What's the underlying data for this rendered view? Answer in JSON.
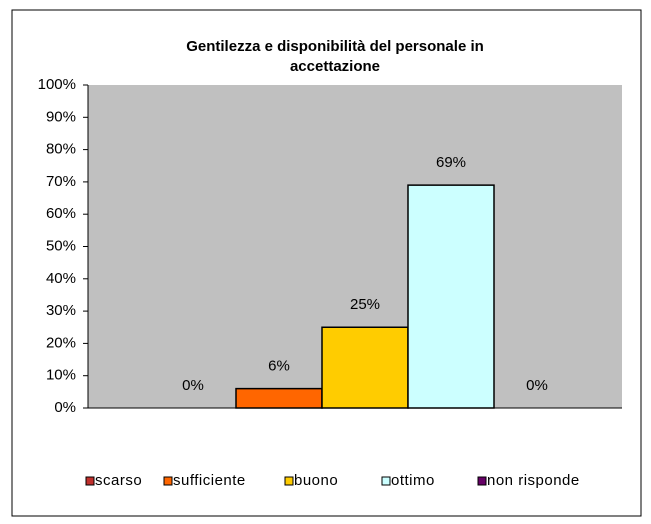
{
  "chart_data": {
    "type": "bar",
    "title": "Gentilezza e disponibilità del personale in accettazione",
    "series": [
      {
        "name": "scarso",
        "color": "#c0302c",
        "values": [
          0
        ],
        "value_labels": [
          "0%"
        ]
      },
      {
        "name": "sufficiente",
        "color": "#ff6600",
        "values": [
          6
        ],
        "value_labels": [
          "6%"
        ]
      },
      {
        "name": "buono",
        "color": "#ffcc00",
        "values": [
          25
        ],
        "value_labels": [
          "25%"
        ]
      },
      {
        "name": "ottimo",
        "color": "#ccffff",
        "values": [
          69
        ],
        "value_labels": [
          "69%"
        ]
      },
      {
        "name": "non risponde",
        "color": "#660066",
        "values": [
          0
        ],
        "value_labels": [
          "0%"
        ]
      }
    ],
    "ylim": [
      0,
      100
    ],
    "yticks": [
      {
        "value": 0,
        "label": "0%"
      },
      {
        "value": 10,
        "label": "10%"
      },
      {
        "value": 20,
        "label": "20%"
      },
      {
        "value": 30,
        "label": "30%"
      },
      {
        "value": 40,
        "label": "40%"
      },
      {
        "value": 50,
        "label": "50%"
      },
      {
        "value": 60,
        "label": "60%"
      },
      {
        "value": 70,
        "label": "70%"
      },
      {
        "value": 80,
        "label": "80%"
      },
      {
        "value": 90,
        "label": "90%"
      },
      {
        "value": 100,
        "label": "100%"
      }
    ],
    "plot_background": "#c0c0c0",
    "legend": "bottom"
  }
}
